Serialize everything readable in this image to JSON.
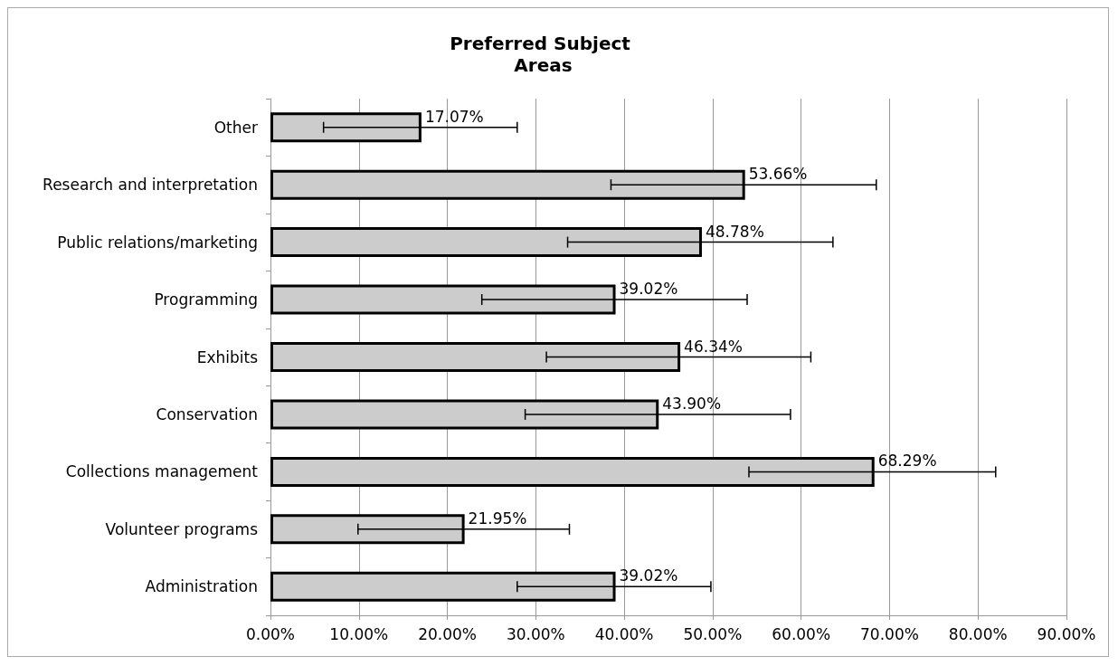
{
  "chart_data": {
    "type": "bar",
    "orientation": "horizontal",
    "title": "Preferred Subject Areas",
    "categories": [
      "Other",
      "Research and interpretation",
      "Public relations/marketing",
      "Programming",
      "Exhibits",
      "Conservation",
      "Collections management",
      "Volunteer programs",
      "Administration"
    ],
    "values": [
      17.07,
      53.66,
      48.78,
      39.02,
      46.34,
      43.9,
      68.29,
      21.95,
      39.02
    ],
    "value_labels": [
      "17.07%",
      "53.66%",
      "48.78%",
      "39.02%",
      "46.34%",
      "43.90%",
      "68.29%",
      "21.95%",
      "39.02%"
    ],
    "errors": [
      [
        6.0,
        27.9
      ],
      [
        38.5,
        68.5
      ],
      [
        33.6,
        63.6
      ],
      [
        23.9,
        53.9
      ],
      [
        31.2,
        61.1
      ],
      [
        28.8,
        58.8
      ],
      [
        54.1,
        82.0
      ],
      [
        9.9,
        33.8
      ],
      [
        27.9,
        49.8
      ]
    ],
    "color": "#cccccc",
    "xlim": [
      0,
      90
    ],
    "xticks": [
      {
        "value": 0,
        "label": "0.00%"
      },
      {
        "value": 10,
        "label": "10.00%"
      },
      {
        "value": 20,
        "label": "20.00%"
      },
      {
        "value": 30,
        "label": "30.00%"
      },
      {
        "value": 40,
        "label": "40.00%"
      },
      {
        "value": 50,
        "label": "50.00%"
      },
      {
        "value": 60,
        "label": "60.00%"
      },
      {
        "value": 70,
        "label": "70.00%"
      },
      {
        "value": 80,
        "label": "80.00%"
      },
      {
        "value": 90,
        "label": "90.00%"
      }
    ],
    "grid": "x"
  }
}
